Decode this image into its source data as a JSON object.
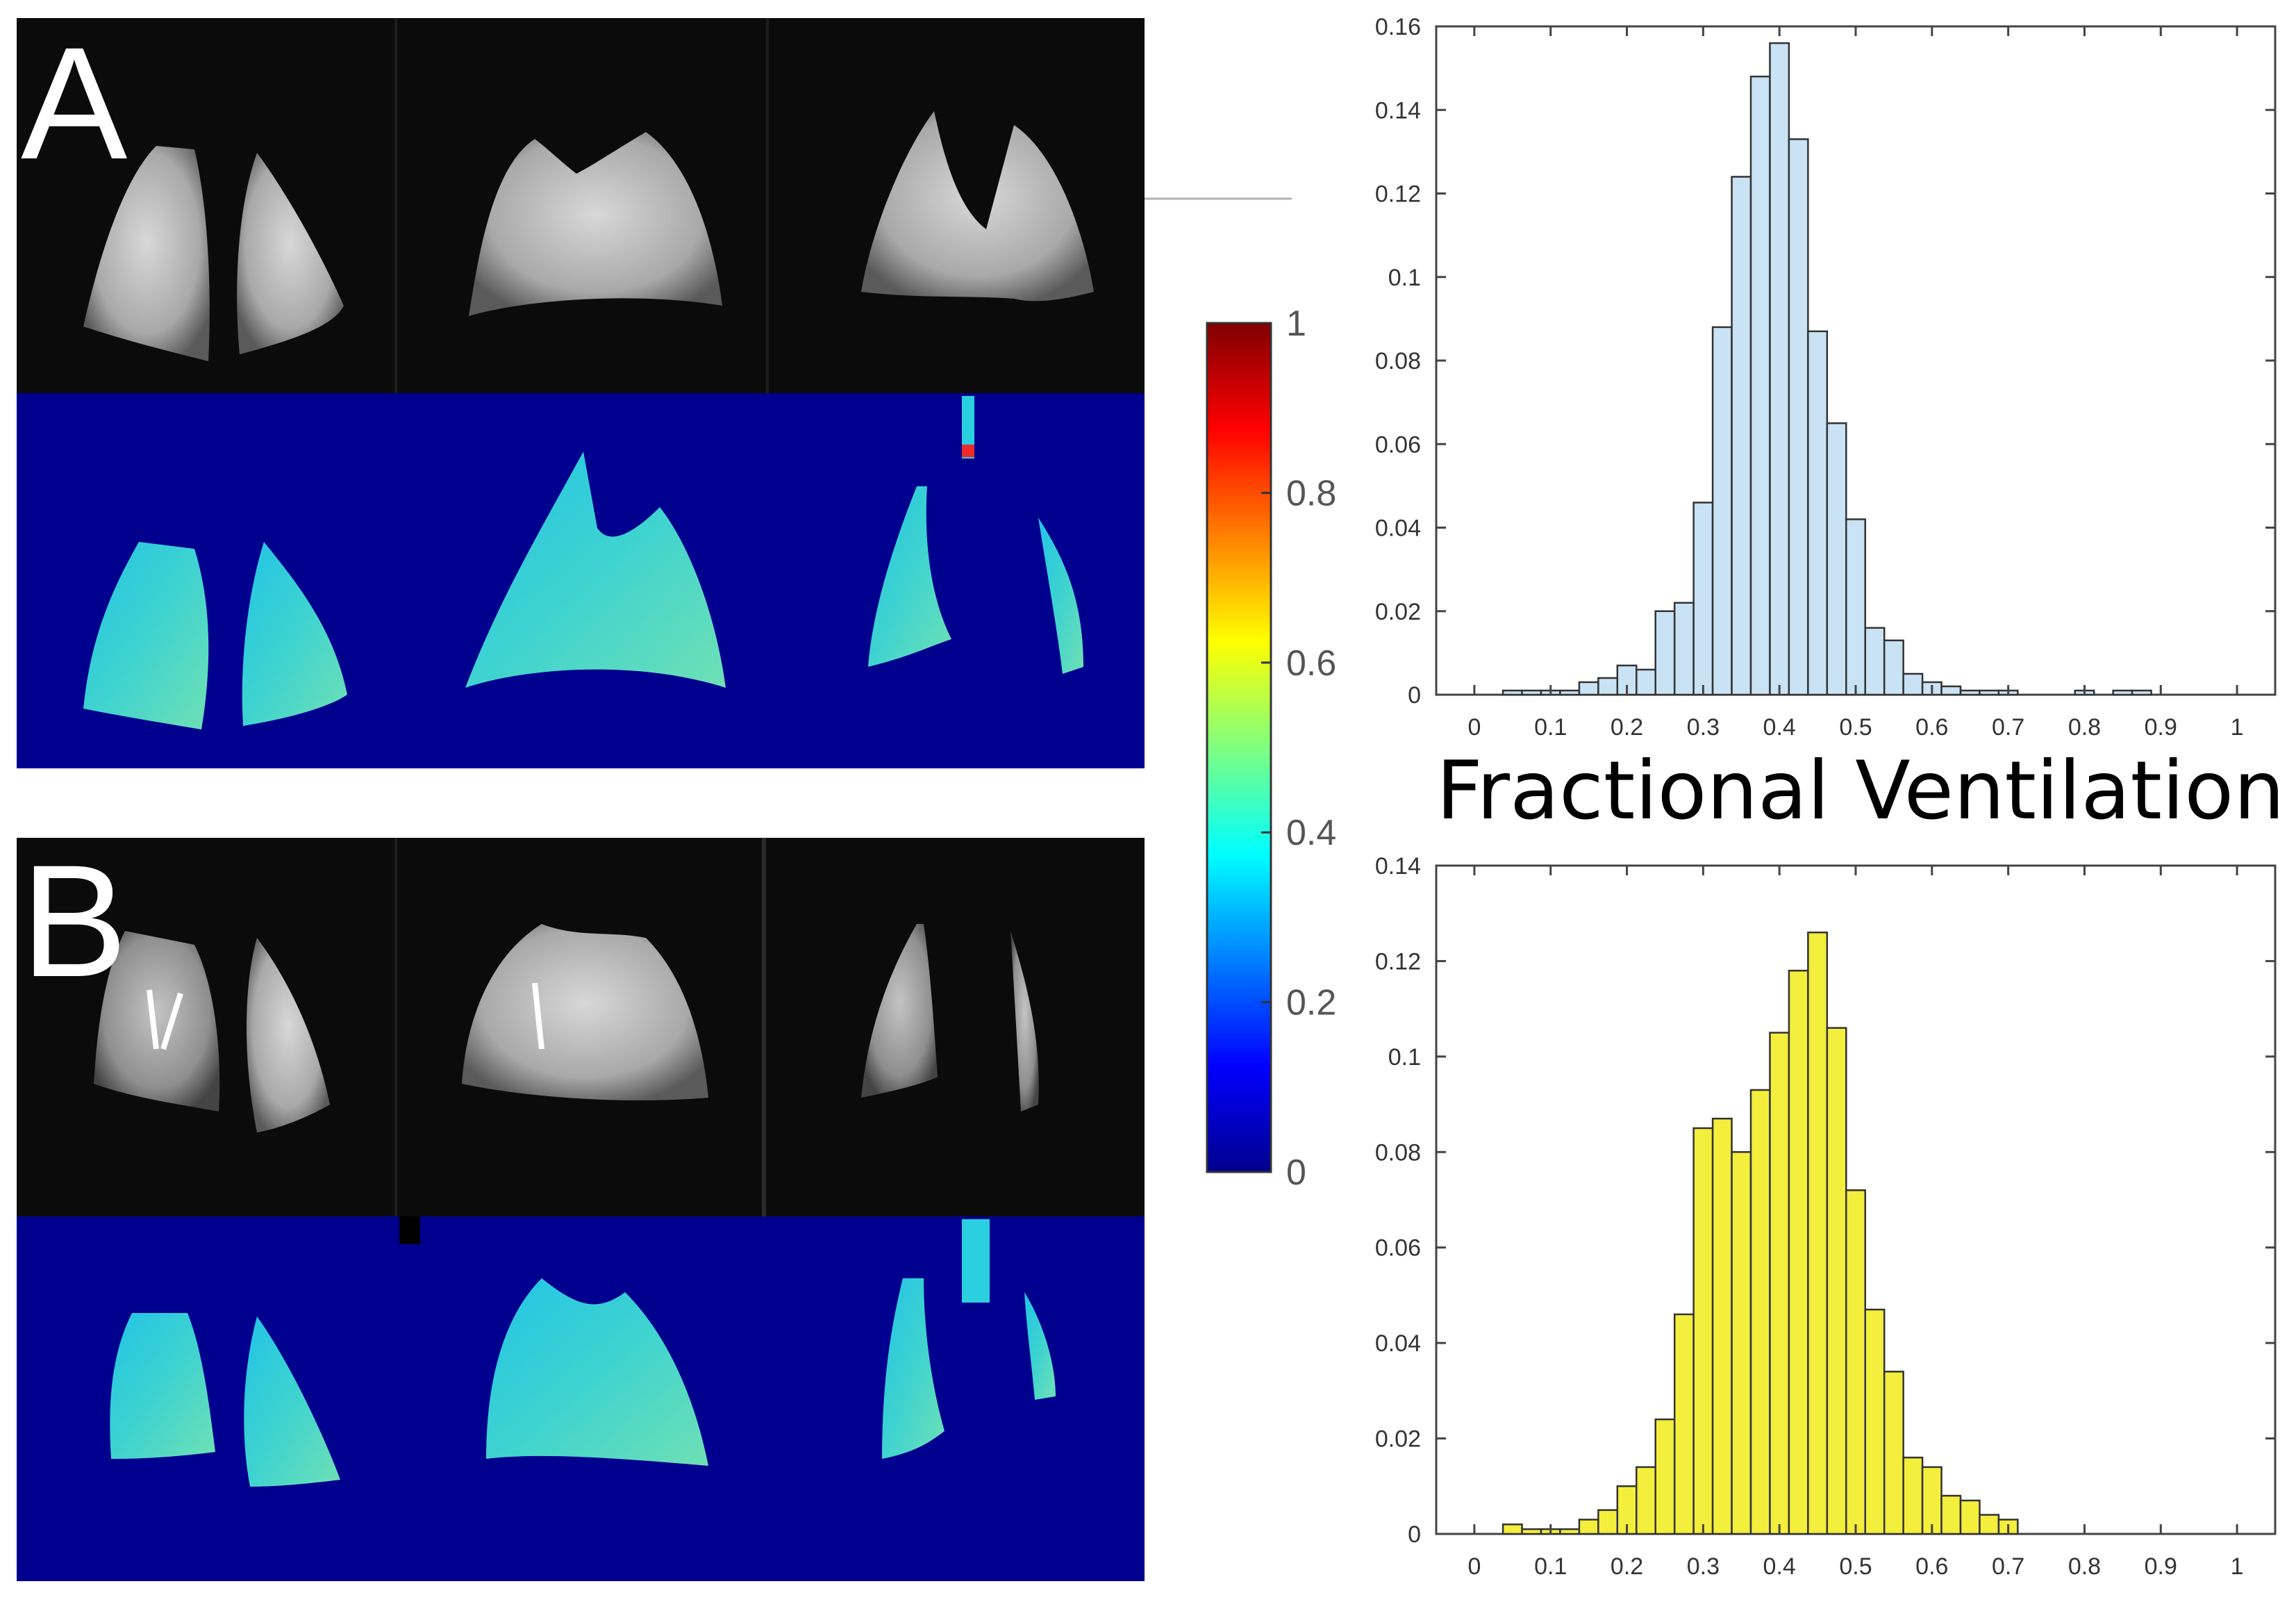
{
  "figure": {
    "panels": [
      {
        "letter": "A"
      },
      {
        "letter": "B"
      }
    ],
    "colorbar": {
      "colormap": "jet",
      "ticks": [
        "0",
        "0.2",
        "0.4",
        "0.6",
        "0.8",
        "1"
      ],
      "range": [
        0,
        1
      ]
    },
    "shared_xlabel": "Fractional Ventilation",
    "colors": {
      "histA_fill": "#c9e2f4",
      "histB_fill": "#f4ee3c",
      "map_background": "#00008f",
      "mri_background": "#0a0a0a"
    }
  },
  "chart_data": [
    {
      "type": "bar",
      "name": "histogram-A",
      "x": [
        0.05,
        0.075,
        0.1,
        0.125,
        0.15,
        0.175,
        0.2,
        0.225,
        0.25,
        0.275,
        0.3,
        0.325,
        0.35,
        0.375,
        0.4,
        0.425,
        0.45,
        0.475,
        0.5,
        0.525,
        0.55,
        0.575,
        0.6,
        0.625,
        0.65,
        0.675,
        0.7,
        0.8,
        0.85,
        0.875
      ],
      "values": [
        0.001,
        0.001,
        0.001,
        0.001,
        0.003,
        0.004,
        0.007,
        0.006,
        0.02,
        0.022,
        0.046,
        0.088,
        0.124,
        0.148,
        0.156,
        0.133,
        0.087,
        0.065,
        0.042,
        0.016,
        0.013,
        0.005,
        0.003,
        0.002,
        0.001,
        0.001,
        0.001,
        0.001,
        0.001,
        0.001
      ],
      "bin_width": 0.025,
      "xticks": [
        "0",
        "0.1",
        "0.2",
        "0.3",
        "0.4",
        "0.5",
        "0.6",
        "0.7",
        "0.8",
        "0.9",
        "1"
      ],
      "yticks": [
        "0",
        "0.02",
        "0.04",
        "0.06",
        "0.08",
        "0.1",
        "0.12",
        "0.14",
        "0.16"
      ],
      "xlim": [
        -0.05,
        1.05
      ],
      "ylim": [
        0,
        0.16
      ]
    },
    {
      "type": "bar",
      "name": "histogram-B",
      "x": [
        0.05,
        0.075,
        0.1,
        0.125,
        0.15,
        0.175,
        0.2,
        0.225,
        0.25,
        0.275,
        0.3,
        0.325,
        0.35,
        0.375,
        0.4,
        0.425,
        0.45,
        0.475,
        0.5,
        0.525,
        0.55,
        0.575,
        0.6,
        0.625,
        0.65,
        0.675,
        0.7
      ],
      "values": [
        0.002,
        0.001,
        0.001,
        0.001,
        0.003,
        0.005,
        0.01,
        0.014,
        0.024,
        0.046,
        0.085,
        0.087,
        0.08,
        0.093,
        0.105,
        0.118,
        0.126,
        0.106,
        0.072,
        0.047,
        0.034,
        0.016,
        0.014,
        0.008,
        0.007,
        0.004,
        0.003
      ],
      "bin_width": 0.025,
      "xticks": [
        "0",
        "0.1",
        "0.2",
        "0.3",
        "0.4",
        "0.5",
        "0.6",
        "0.7",
        "0.8",
        "0.9",
        "1"
      ],
      "yticks": [
        "0",
        "0.02",
        "0.04",
        "0.06",
        "0.08",
        "0.1",
        "0.12",
        "0.14"
      ],
      "xlim": [
        -0.05,
        1.05
      ],
      "ylim": [
        0,
        0.14
      ]
    }
  ]
}
